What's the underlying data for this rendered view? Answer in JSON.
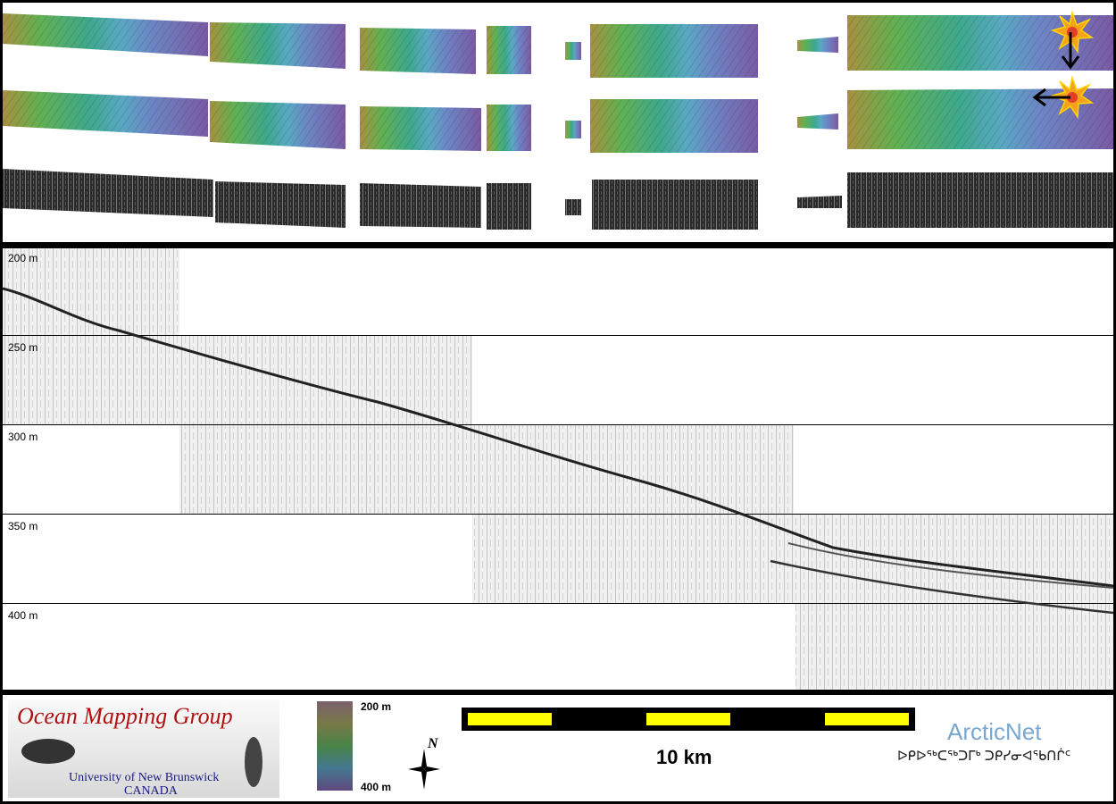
{
  "depth_labels": [
    "200 m",
    "250 m",
    "300 m",
    "350 m",
    "400 m"
  ],
  "legend": {
    "colorbar_top": "200 m",
    "colorbar_bottom": "400 m",
    "scale_label": "10 km",
    "compass_label": "N"
  },
  "logos": {
    "omg_title": "Ocean Mapping Group",
    "omg_university": "University of New Brunswick",
    "omg_country": "CANADA",
    "arcticnet": "ArcticNet",
    "arcticnet_syllabics": "ᐅᑭᐅᖅᑕᖅᑐᒥᒃ ᑐᑭᓯᓂᐊᖃᑎᒌᑦ"
  },
  "colors": {
    "scale_yellow": "#ffff00",
    "sun_orange": "#f5a21b",
    "logo_red": "#b01010",
    "logo_blue": "#1a1a80",
    "arcticnet_blue": "#7aa7cf"
  },
  "icons": [
    "sun-icon",
    "arrow-down-icon",
    "arrow-left-icon",
    "compass-icon"
  ]
}
